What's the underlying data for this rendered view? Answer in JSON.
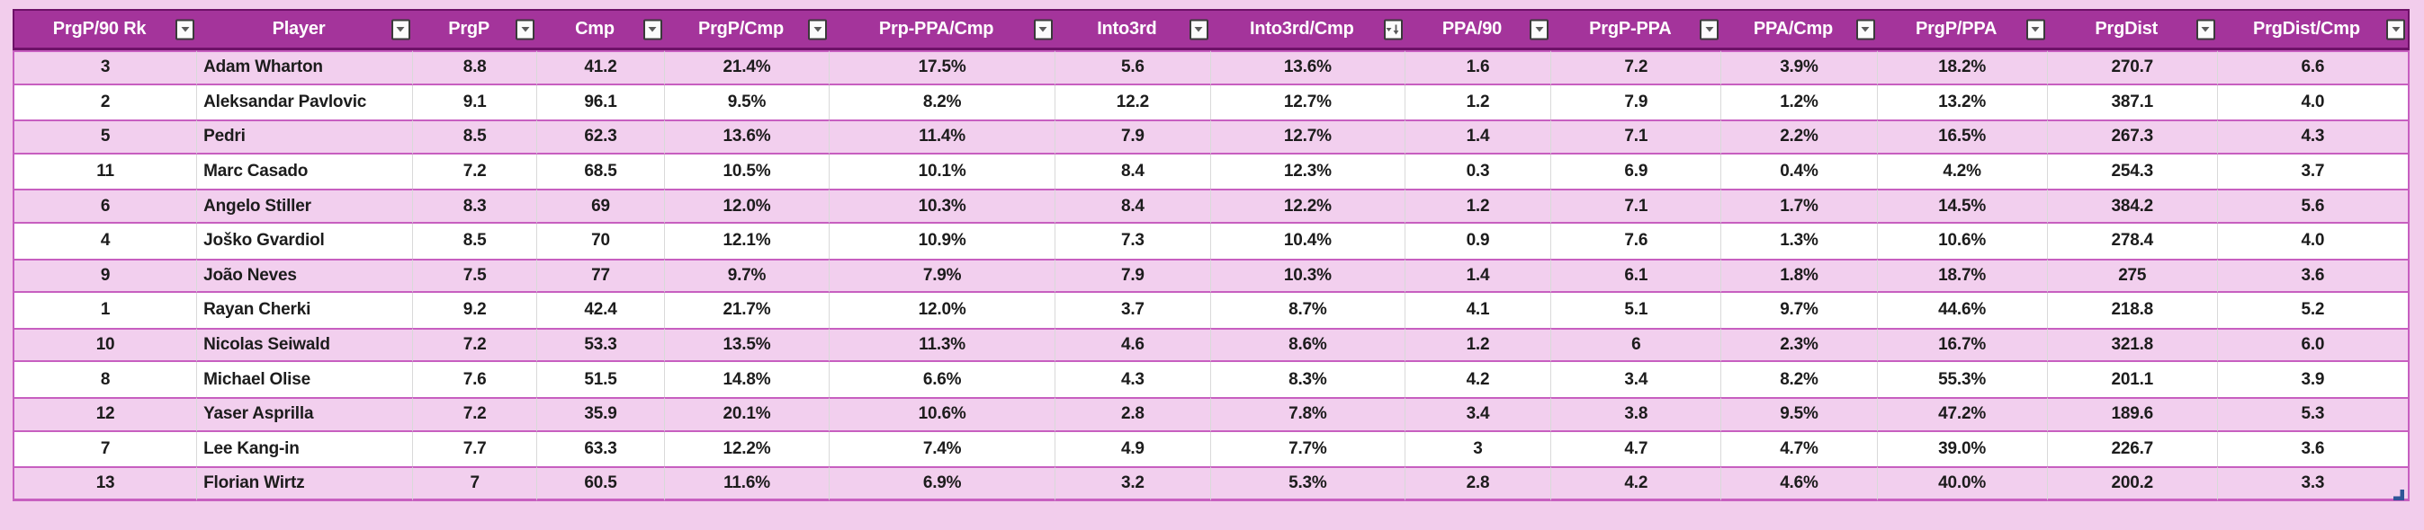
{
  "table": {
    "columns": [
      {
        "label": "PrgP/90 Rk",
        "sort": "none"
      },
      {
        "label": "Player",
        "sort": "none"
      },
      {
        "label": "PrgP",
        "sort": "none"
      },
      {
        "label": "Cmp",
        "sort": "none"
      },
      {
        "label": "PrgP/Cmp",
        "sort": "none"
      },
      {
        "label": "Prp-PPA/Cmp",
        "sort": "none"
      },
      {
        "label": "Into3rd",
        "sort": "none"
      },
      {
        "label": "Into3rd/Cmp",
        "sort": "desc"
      },
      {
        "label": "PPA/90",
        "sort": "none"
      },
      {
        "label": "PrgP-PPA",
        "sort": "none"
      },
      {
        "label": "PPA/Cmp",
        "sort": "none"
      },
      {
        "label": "PrgP/PPA",
        "sort": "none"
      },
      {
        "label": "PrgDist",
        "sort": "none"
      },
      {
        "label": "PrgDist/Cmp",
        "sort": "none"
      }
    ],
    "rows": [
      [
        "3",
        "Adam Wharton",
        "8.8",
        "41.2",
        "21.4%",
        "17.5%",
        "5.6",
        "13.6%",
        "1.6",
        "7.2",
        "3.9%",
        "18.2%",
        "270.7",
        "6.6"
      ],
      [
        "2",
        "Aleksandar Pavlovic",
        "9.1",
        "96.1",
        "9.5%",
        "8.2%",
        "12.2",
        "12.7%",
        "1.2",
        "7.9",
        "1.2%",
        "13.2%",
        "387.1",
        "4.0"
      ],
      [
        "5",
        "Pedri",
        "8.5",
        "62.3",
        "13.6%",
        "11.4%",
        "7.9",
        "12.7%",
        "1.4",
        "7.1",
        "2.2%",
        "16.5%",
        "267.3",
        "4.3"
      ],
      [
        "11",
        "Marc Casado",
        "7.2",
        "68.5",
        "10.5%",
        "10.1%",
        "8.4",
        "12.3%",
        "0.3",
        "6.9",
        "0.4%",
        "4.2%",
        "254.3",
        "3.7"
      ],
      [
        "6",
        "Angelo Stiller",
        "8.3",
        "69",
        "12.0%",
        "10.3%",
        "8.4",
        "12.2%",
        "1.2",
        "7.1",
        "1.7%",
        "14.5%",
        "384.2",
        "5.6"
      ],
      [
        "4",
        "Joško Gvardiol",
        "8.5",
        "70",
        "12.1%",
        "10.9%",
        "7.3",
        "10.4%",
        "0.9",
        "7.6",
        "1.3%",
        "10.6%",
        "278.4",
        "4.0"
      ],
      [
        "9",
        "João Neves",
        "7.5",
        "77",
        "9.7%",
        "7.9%",
        "7.9",
        "10.3%",
        "1.4",
        "6.1",
        "1.8%",
        "18.7%",
        "275",
        "3.6"
      ],
      [
        "1",
        "Rayan Cherki",
        "9.2",
        "42.4",
        "21.7%",
        "12.0%",
        "3.7",
        "8.7%",
        "4.1",
        "5.1",
        "9.7%",
        "44.6%",
        "218.8",
        "5.2"
      ],
      [
        "10",
        "Nicolas Seiwald",
        "7.2",
        "53.3",
        "13.5%",
        "11.3%",
        "4.6",
        "8.6%",
        "1.2",
        "6",
        "2.3%",
        "16.7%",
        "321.8",
        "6.0"
      ],
      [
        "8",
        "Michael Olise",
        "7.6",
        "51.5",
        "14.8%",
        "6.6%",
        "4.3",
        "8.3%",
        "4.2",
        "3.4",
        "8.2%",
        "55.3%",
        "201.1",
        "3.9"
      ],
      [
        "12",
        "Yaser Asprilla",
        "7.2",
        "35.9",
        "20.1%",
        "10.6%",
        "2.8",
        "7.8%",
        "3.4",
        "3.8",
        "9.5%",
        "47.2%",
        "189.6",
        "5.3"
      ],
      [
        "7",
        "Lee Kang-in",
        "7.7",
        "63.3",
        "12.2%",
        "7.4%",
        "4.9",
        "7.7%",
        "3",
        "4.7",
        "4.7%",
        "39.0%",
        "226.7",
        "3.6"
      ],
      [
        "13",
        "Florian Wirtz",
        "7",
        "60.5",
        "11.6%",
        "6.9%",
        "3.2",
        "5.3%",
        "2.8",
        "4.2",
        "4.6%",
        "40.0%",
        "200.2",
        "3.3"
      ]
    ]
  },
  "icons": {
    "filter_dropdown": "▼",
    "sorted_descending": "▼↓"
  },
  "colors": {
    "page_bg": "#F2CDEC",
    "header_bg": "#A4349B",
    "header_border": "#6E1168",
    "header_text": "#FFFFFF",
    "band_bg": "#F2CFEE",
    "band_border": "#C75FC0",
    "grid_line": "#D9D9D9",
    "cell_text": "#1C1C1C",
    "handle_blue": "#2F5597"
  }
}
